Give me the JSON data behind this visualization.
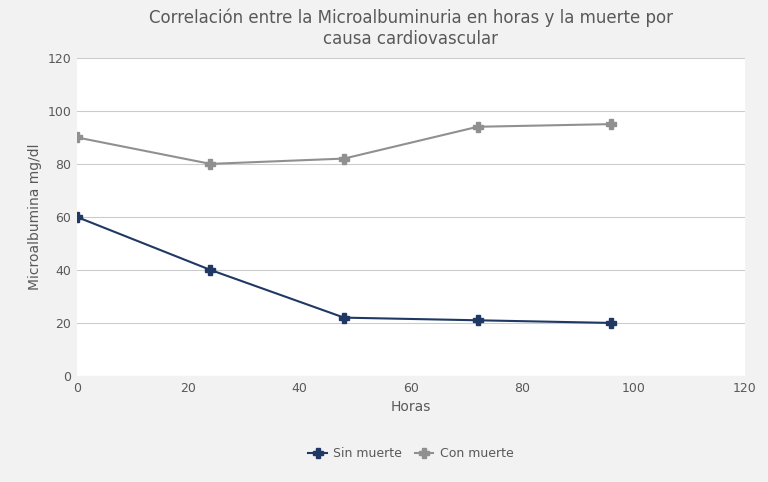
{
  "title": "Correlación entre la Microalbuminuria en horas y la muerte por\ncausa cardiovascular",
  "xlabel": "Horas",
  "ylabel": "Microalbumina mg/dl",
  "xlim": [
    0,
    120
  ],
  "ylim": [
    0,
    120
  ],
  "xticks": [
    0,
    20,
    40,
    60,
    80,
    100,
    120
  ],
  "yticks": [
    0,
    20,
    40,
    60,
    80,
    100,
    120
  ],
  "sin_muerte": {
    "x": [
      0,
      24,
      48,
      72,
      96
    ],
    "y": [
      60,
      40,
      22,
      21,
      20
    ],
    "color": "#1F3864",
    "label": "Sin muerte",
    "marker": "P",
    "markersize": 7,
    "linewidth": 1.5
  },
  "con_muerte": {
    "x": [
      0,
      24,
      48,
      72,
      96
    ],
    "y": [
      90,
      80,
      82,
      94,
      95
    ],
    "color": "#909090",
    "label": "Con muerte",
    "marker": "P",
    "markersize": 7,
    "linewidth": 1.5
  },
  "fig_background_color": "#f2f2f2",
  "plot_background_color": "#ffffff",
  "grid_color": "#cccccc",
  "title_fontsize": 12,
  "label_fontsize": 10,
  "tick_fontsize": 9,
  "legend_fontsize": 9,
  "title_color": "#595959",
  "tick_color": "#595959",
  "label_color": "#595959"
}
